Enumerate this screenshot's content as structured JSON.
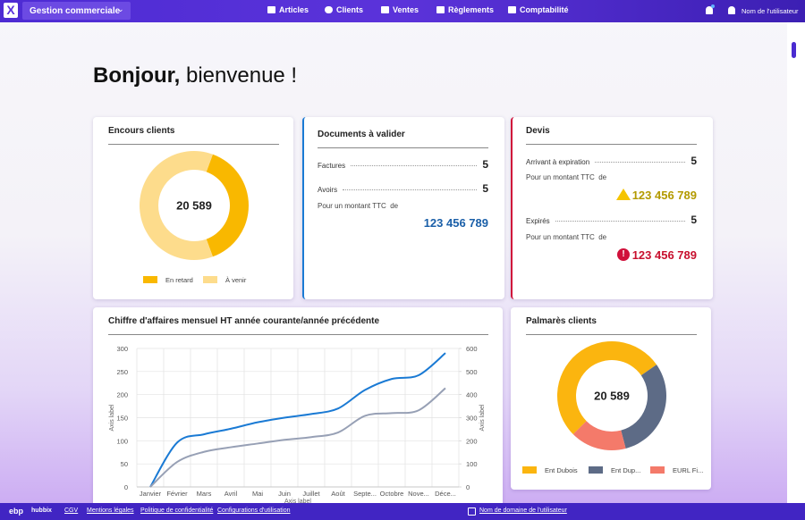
{
  "app": {
    "name": "Gestion commerciale",
    "nav": [
      "Articles",
      "Clients",
      "Ventes",
      "Règlements",
      "Comptabilité"
    ],
    "user": "Nom de l'utilisateur"
  },
  "greeting": {
    "bold": "Bonjour,",
    "rest": "bienvenue !"
  },
  "encours": {
    "title": "Encours clients",
    "chart": {
      "type": "donut",
      "center_label": "20 589",
      "categories": [
        "En retard",
        "À venir"
      ],
      "values": [
        8000,
        12589
      ],
      "colors": [
        "#f9b800",
        "#fddc8c"
      ]
    }
  },
  "documents": {
    "title": "Documents à valider",
    "rows": [
      {
        "label": "Factures",
        "value": 5
      },
      {
        "label": "Avoirs",
        "value": 5
      }
    ],
    "amount_label": "Pour un montant TTC  de",
    "amount": "123 456 789"
  },
  "devis": {
    "title": "Devis",
    "groups": [
      {
        "label": "Arrivant à expiration",
        "value": 5,
        "amount_label": "Pour un montant TTC  de",
        "amount": "123 456 789"
      },
      {
        "label": "Expirés",
        "value": 5,
        "amount_label": "Pour un montant TTC  de",
        "amount": "123 456 789"
      }
    ]
  },
  "revenue": {
    "title": "Chiffre d'affaires mensuel HT année courante/année précédente",
    "chart": {
      "type": "line",
      "categories": [
        "Janvier",
        "Février",
        "Mars",
        "Avril",
        "Mai",
        "Juin",
        "Juillet",
        "Août",
        "Septe...",
        "Octobre",
        "Nove...",
        "Déce..."
      ],
      "series": [
        {
          "color": "#1a7ad4",
          "values": [
            0,
            96,
            114,
            126,
            140,
            150,
            158,
            170,
            210,
            234,
            242,
            290
          ]
        },
        {
          "color": "#97a0b5",
          "axis": "y2",
          "values": [
            0,
            108,
            152,
            172,
            188,
            204,
            216,
            236,
            308,
            320,
            332,
            428
          ]
        }
      ],
      "ylim": [
        0,
        300
      ],
      "yticks": [
        0,
        50,
        100,
        150,
        200,
        250,
        300
      ],
      "y2lim": [
        0,
        600
      ],
      "y2ticks": [
        0,
        100,
        200,
        300,
        400,
        500,
        600
      ],
      "ylabel": "Axis label",
      "y2label": "Axis label",
      "xlabel": "Axis label",
      "grid": true
    }
  },
  "palmares": {
    "title": "Palmarès clients",
    "chart": {
      "type": "donut",
      "center_label": "20 589",
      "categories": [
        "Ent Dubois",
        "Ent Dup...",
        "EURL Fi..."
      ],
      "values": [
        10866,
        6291,
        3432
      ],
      "colors": [
        "#fbb50f",
        "#5d6b86",
        "#f47a6a"
      ]
    }
  },
  "footer": {
    "brand": "ebp",
    "product": "hubbix",
    "links": [
      "CGV",
      "Mentions légales",
      "Politique de confidentialité",
      "Configurations d'utilisation"
    ],
    "domain": "Nom de domaine de l'utilisateur"
  }
}
